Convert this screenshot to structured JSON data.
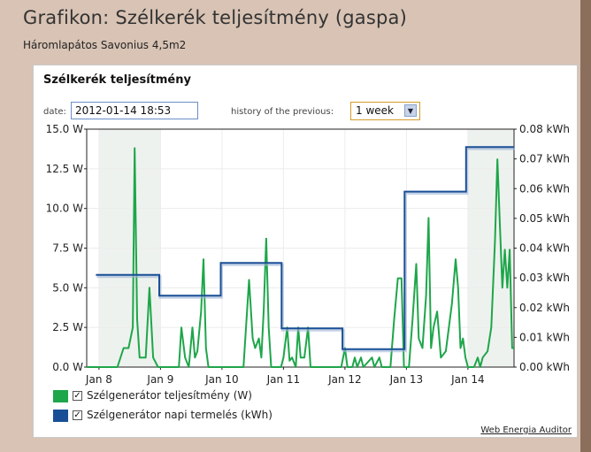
{
  "page": {
    "title": "Grafikon: Szélkerék teljesítmény (gaspa)",
    "subtitle": "Háromlapátos Savonius 4,5m2"
  },
  "card": {
    "title": "Szélkerék teljesítmény",
    "date_label": "date:",
    "date_value": "2012-01-14 18:53",
    "history_label": "history of the previous:",
    "history_value": "1 week",
    "footer_link": "Web Energia Auditor"
  },
  "colors": {
    "power_series": "#1ea64a",
    "energy_series": "#1a4f96",
    "shade": "#eef2ee",
    "grid": "#ececec"
  },
  "legend": [
    {
      "label": "Szélgenerátor teljesítmény (W)",
      "color": "#1ea64a",
      "checked": true
    },
    {
      "label": "Szélgenerátor napi termelés (kWh)",
      "color": "#1a4f96",
      "checked": true
    }
  ],
  "chart_data": {
    "type": "line",
    "xlabel": "",
    "ylabel_left": "",
    "ylabel_right": "",
    "x_range": [
      7.8,
      14.75
    ],
    "x_ticks": [
      {
        "x": 8,
        "label": "Jan 8"
      },
      {
        "x": 9,
        "label": "Jan 9"
      },
      {
        "x": 10,
        "label": "Jan 10"
      },
      {
        "x": 11,
        "label": "Jan 11"
      },
      {
        "x": 12,
        "label": "Jan 12"
      },
      {
        "x": 13,
        "label": "Jan 13"
      },
      {
        "x": 14,
        "label": "Jan 14"
      }
    ],
    "y_left": {
      "range": [
        0,
        15
      ],
      "ticks": [
        {
          "v": 0,
          "label": "0.0 W"
        },
        {
          "v": 2.5,
          "label": "2.5 W"
        },
        {
          "v": 5,
          "label": "5.0 W"
        },
        {
          "v": 7.5,
          "label": "7.5 W"
        },
        {
          "v": 10,
          "label": "10.0 W"
        },
        {
          "v": 12.5,
          "label": "12.5 W"
        },
        {
          "v": 15,
          "label": "15.0 W"
        }
      ]
    },
    "y_right": {
      "range": [
        0,
        0.08
      ],
      "ticks": [
        {
          "v": 0,
          "label": "0.00 kWh"
        },
        {
          "v": 0.01,
          "label": "0.01 kWh"
        },
        {
          "v": 0.02,
          "label": "0.02 kWh"
        },
        {
          "v": 0.03,
          "label": "0.03 kWh"
        },
        {
          "v": 0.04,
          "label": "0.04 kWh"
        },
        {
          "v": 0.05,
          "label": "0.05 kWh"
        },
        {
          "v": 0.06,
          "label": "0.06 kWh"
        },
        {
          "v": 0.07,
          "label": "0.07 kWh"
        },
        {
          "v": 0.08,
          "label": "0.08 kWh"
        }
      ]
    },
    "shaded_ranges": [
      [
        8.0,
        9.0
      ],
      [
        14.0,
        14.75
      ]
    ],
    "grid": true,
    "legend_position": "bottom",
    "series": [
      {
        "name": "Szélgenerátor teljesítmény (W)",
        "axis": "left",
        "color": "#1ea64a",
        "points": [
          [
            7.8,
            0
          ],
          [
            8.3,
            0
          ],
          [
            8.4,
            1.2
          ],
          [
            8.48,
            1.2
          ],
          [
            8.55,
            2.5
          ],
          [
            8.58,
            13.8
          ],
          [
            8.62,
            3
          ],
          [
            8.66,
            0.6
          ],
          [
            8.76,
            0.6
          ],
          [
            8.82,
            5
          ],
          [
            8.88,
            0.6
          ],
          [
            8.96,
            0
          ],
          [
            9.3,
            0
          ],
          [
            9.34,
            2.5
          ],
          [
            9.4,
            0.6
          ],
          [
            9.46,
            0
          ],
          [
            9.52,
            2.5
          ],
          [
            9.56,
            0.6
          ],
          [
            9.6,
            1
          ],
          [
            9.66,
            3.5
          ],
          [
            9.7,
            6.8
          ],
          [
            9.74,
            1.2
          ],
          [
            9.78,
            0
          ],
          [
            10.35,
            0
          ],
          [
            10.44,
            5.5
          ],
          [
            10.5,
            1.8
          ],
          [
            10.54,
            1.2
          ],
          [
            10.6,
            1.8
          ],
          [
            10.64,
            0.6
          ],
          [
            10.68,
            3.6
          ],
          [
            10.72,
            8.1
          ],
          [
            10.76,
            2.5
          ],
          [
            10.8,
            0
          ],
          [
            10.96,
            0
          ],
          [
            11.0,
            0.6
          ],
          [
            11.06,
            2.5
          ],
          [
            11.1,
            0.4
          ],
          [
            11.14,
            0.6
          ],
          [
            11.2,
            0
          ],
          [
            11.24,
            2.5
          ],
          [
            11.28,
            0.6
          ],
          [
            11.34,
            0.6
          ],
          [
            11.4,
            2.5
          ],
          [
            11.44,
            0
          ],
          [
            11.94,
            0
          ],
          [
            12.0,
            1.2
          ],
          [
            12.04,
            0
          ],
          [
            12.12,
            0
          ],
          [
            12.16,
            0.6
          ],
          [
            12.2,
            0
          ],
          [
            12.26,
            0.6
          ],
          [
            12.3,
            0
          ],
          [
            12.44,
            0.6
          ],
          [
            12.48,
            0
          ],
          [
            12.56,
            0.6
          ],
          [
            12.6,
            0
          ],
          [
            12.74,
            0
          ],
          [
            12.8,
            3
          ],
          [
            12.86,
            5.6
          ],
          [
            12.92,
            5.6
          ],
          [
            12.96,
            0
          ],
          [
            13.04,
            0
          ],
          [
            13.1,
            3
          ],
          [
            13.16,
            6.5
          ],
          [
            13.2,
            1.8
          ],
          [
            13.26,
            1.2
          ],
          [
            13.32,
            4.5
          ],
          [
            13.36,
            9.4
          ],
          [
            13.4,
            1.2
          ],
          [
            13.44,
            2.5
          ],
          [
            13.5,
            3.5
          ],
          [
            13.56,
            0.6
          ],
          [
            13.64,
            1
          ],
          [
            13.74,
            4
          ],
          [
            13.8,
            6.8
          ],
          [
            13.84,
            5
          ],
          [
            13.88,
            1.2
          ],
          [
            13.92,
            1.8
          ],
          [
            13.96,
            0.6
          ],
          [
            14.0,
            0
          ],
          [
            14.1,
            0
          ],
          [
            14.16,
            0.6
          ],
          [
            14.2,
            0
          ],
          [
            14.24,
            0.6
          ],
          [
            14.32,
            1
          ],
          [
            14.38,
            2.5
          ],
          [
            14.44,
            8
          ],
          [
            14.48,
            13.1
          ],
          [
            14.52,
            9
          ],
          [
            14.56,
            5
          ],
          [
            14.6,
            7.4
          ],
          [
            14.64,
            5
          ],
          [
            14.68,
            7.4
          ],
          [
            14.72,
            1.2
          ],
          [
            14.75,
            1.2
          ]
        ]
      },
      {
        "name": "Szélgenerátor napi termelés (kWh)",
        "axis": "right",
        "color": "#1a4f96",
        "steps": [
          {
            "from": 7.95,
            "to": 8.98,
            "value": 0.031
          },
          {
            "from": 8.98,
            "to": 9.98,
            "value": 0.024
          },
          {
            "from": 9.98,
            "to": 10.97,
            "value": 0.035
          },
          {
            "from": 10.97,
            "to": 11.96,
            "value": 0.013
          },
          {
            "from": 11.96,
            "to": 12.97,
            "value": 0.006
          },
          {
            "from": 12.97,
            "to": 13.97,
            "value": 0.059
          },
          {
            "from": 13.97,
            "to": 14.75,
            "value": 0.074
          }
        ]
      }
    ]
  }
}
